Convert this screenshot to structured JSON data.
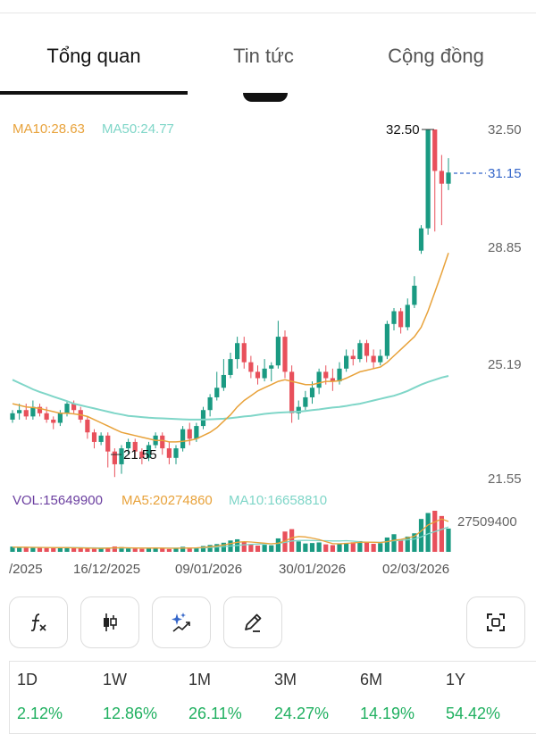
{
  "tabs": [
    {
      "label": "Tổng quan"
    },
    {
      "label": "Tin tức"
    },
    {
      "label": "Cộng đồng"
    }
  ],
  "indicators": {
    "ma10": "MA10:28.63",
    "ma50": "MA50:24.77",
    "vol": "VOL:15649900",
    "vol_ma5": "MA5:20274860",
    "vol_ma10": "MA10:16658810"
  },
  "colors": {
    "up": "#1a9a82",
    "down": "#e8505b",
    "ma10": "#e8a23a",
    "ma50": "#7fd6c8",
    "vol_label": "#6b3fa0",
    "current": "#3566c9",
    "gain": "#20b060"
  },
  "chart_data": {
    "type": "candlestick",
    "price_axis_labels": [
      "32.50",
      "28.85",
      "25.19",
      "21.55"
    ],
    "ylim": [
      21.55,
      32.5
    ],
    "high_marker": "32.50",
    "low_marker": "21.55",
    "current_price": "31.15",
    "volume_axis_label": "27509400",
    "x_labels": [
      "/2025",
      "16/12/2025",
      "09/01/2026",
      "30/01/2026",
      "02/03/2026"
    ],
    "candles": [
      [
        23.4,
        23.6,
        23.3,
        23.7
      ],
      [
        23.6,
        23.7,
        23.4,
        23.9
      ],
      [
        23.7,
        23.5,
        23.4,
        23.9
      ],
      [
        23.5,
        23.8,
        23.4,
        24.0
      ],
      [
        23.8,
        23.6,
        23.5,
        23.9
      ],
      [
        23.6,
        23.4,
        23.3,
        23.8
      ],
      [
        23.4,
        23.3,
        23.1,
        23.5
      ],
      [
        23.3,
        23.6,
        23.2,
        23.7
      ],
      [
        23.6,
        23.9,
        23.5,
        24.0
      ],
      [
        23.9,
        23.7,
        23.6,
        24.0
      ],
      [
        23.7,
        23.4,
        23.3,
        23.8
      ],
      [
        23.4,
        23.0,
        22.8,
        23.5
      ],
      [
        23.0,
        22.7,
        22.5,
        23.1
      ],
      [
        22.7,
        22.9,
        22.6,
        23.0
      ],
      [
        22.9,
        22.4,
        21.9,
        23.0
      ],
      [
        22.4,
        22.0,
        21.6,
        22.5
      ],
      [
        22.0,
        22.5,
        21.7,
        22.6
      ],
      [
        22.5,
        22.7,
        22.3,
        22.8
      ],
      [
        22.7,
        22.4,
        22.2,
        22.8
      ],
      [
        22.4,
        22.2,
        22.0,
        22.5
      ],
      [
        22.2,
        22.6,
        22.1,
        22.7
      ],
      [
        22.6,
        22.9,
        22.5,
        23.0
      ],
      [
        22.9,
        22.5,
        22.3,
        23.0
      ],
      [
        22.5,
        22.2,
        22.0,
        22.7
      ],
      [
        22.2,
        22.5,
        22.0,
        22.6
      ],
      [
        22.5,
        23.1,
        22.4,
        23.2
      ],
      [
        23.1,
        22.8,
        22.6,
        23.3
      ],
      [
        22.8,
        23.2,
        22.7,
        23.3
      ],
      [
        23.2,
        23.7,
        23.1,
        23.8
      ],
      [
        23.7,
        24.1,
        23.5,
        24.2
      ],
      [
        24.1,
        24.4,
        24.0,
        24.9
      ],
      [
        24.4,
        24.8,
        24.3,
        25.3
      ],
      [
        24.8,
        25.3,
        24.7,
        25.5
      ],
      [
        25.3,
        25.8,
        25.0,
        26.0
      ],
      [
        25.8,
        25.2,
        25.0,
        26.0
      ],
      [
        25.2,
        24.9,
        24.7,
        25.4
      ],
      [
        24.9,
        24.7,
        24.5,
        25.1
      ],
      [
        24.7,
        25.0,
        24.6,
        25.3
      ],
      [
        25.0,
        25.1,
        24.6,
        25.2
      ],
      [
        25.1,
        26.0,
        25.0,
        26.5
      ],
      [
        26.0,
        24.9,
        24.7,
        26.2
      ],
      [
        24.9,
        23.6,
        23.3,
        25.1
      ],
      [
        23.6,
        23.8,
        23.4,
        24.0
      ],
      [
        23.8,
        24.1,
        23.7,
        24.3
      ],
      [
        24.1,
        24.4,
        23.9,
        24.6
      ],
      [
        24.4,
        24.9,
        24.2,
        25.0
      ],
      [
        24.9,
        24.7,
        24.5,
        25.1
      ],
      [
        24.7,
        24.6,
        24.3,
        25.0
      ],
      [
        24.6,
        25.0,
        24.5,
        25.2
      ],
      [
        25.0,
        25.4,
        24.9,
        25.6
      ],
      [
        25.4,
        25.3,
        25.1,
        25.6
      ],
      [
        25.3,
        25.8,
        25.2,
        25.9
      ],
      [
        25.8,
        25.4,
        25.2,
        25.9
      ],
      [
        25.4,
        25.2,
        25.0,
        25.6
      ],
      [
        25.2,
        25.4,
        25.1,
        25.6
      ],
      [
        25.4,
        26.4,
        25.3,
        26.5
      ],
      [
        26.4,
        26.8,
        26.2,
        26.9
      ],
      [
        26.8,
        26.3,
        26.1,
        26.9
      ],
      [
        26.3,
        27.0,
        26.2,
        27.2
      ],
      [
        27.0,
        27.6,
        26.9,
        27.9
      ],
      [
        28.7,
        29.4,
        28.6,
        29.5
      ],
      [
        29.4,
        32.5,
        29.2,
        32.5
      ],
      [
        32.5,
        31.2,
        29.3,
        32.5
      ],
      [
        31.2,
        30.8,
        29.5,
        31.7
      ],
      [
        30.8,
        31.15,
        30.6,
        31.6
      ]
    ],
    "ma10_series": [
      23.9,
      23.85,
      23.8,
      23.78,
      23.75,
      23.7,
      23.65,
      23.6,
      23.6,
      23.58,
      23.55,
      23.5,
      23.4,
      23.3,
      23.2,
      23.1,
      23.0,
      22.95,
      22.9,
      22.85,
      22.8,
      22.75,
      22.75,
      22.7,
      22.7,
      22.72,
      22.75,
      22.8,
      22.9,
      23.0,
      23.15,
      23.35,
      23.55,
      23.8,
      24.0,
      24.15,
      24.3,
      24.4,
      24.5,
      24.6,
      24.65,
      24.6,
      24.55,
      24.5,
      24.5,
      24.55,
      24.6,
      24.6,
      24.62,
      24.7,
      24.8,
      24.9,
      24.95,
      25.0,
      25.05,
      25.2,
      25.4,
      25.6,
      25.8,
      26.0,
      26.3,
      26.8,
      27.4,
      28.0,
      28.63
    ],
    "ma50_series": [
      24.65,
      24.55,
      24.45,
      24.35,
      24.27,
      24.2,
      24.12,
      24.05,
      23.98,
      23.9,
      23.85,
      23.8,
      23.75,
      23.7,
      23.65,
      23.6,
      23.56,
      23.52,
      23.5,
      23.48,
      23.46,
      23.45,
      23.44,
      23.43,
      23.42,
      23.41,
      23.4,
      23.4,
      23.4,
      23.41,
      23.42,
      23.43,
      23.45,
      23.47,
      23.5,
      23.52,
      23.55,
      23.58,
      23.6,
      23.62,
      23.63,
      23.64,
      23.65,
      23.67,
      23.7,
      23.72,
      23.75,
      23.78,
      23.8,
      23.83,
      23.87,
      23.9,
      23.95,
      24.0,
      24.05,
      24.1,
      24.15,
      24.22,
      24.3,
      24.4,
      24.5,
      24.58,
      24.65,
      24.72,
      24.77
    ],
    "volume": [
      3.5,
      3.0,
      3.2,
      2.8,
      3.1,
      2.6,
      2.4,
      2.9,
      3.3,
      2.7,
      2.5,
      2.2,
      2.0,
      2.3,
      2.9,
      3.6,
      3.2,
      2.4,
      2.1,
      2.0,
      2.6,
      3.0,
      2.2,
      1.9,
      2.1,
      3.4,
      2.6,
      2.8,
      3.9,
      4.6,
      5.2,
      6.1,
      7.6,
      8.4,
      6.8,
      5.0,
      4.2,
      4.7,
      4.4,
      9.0,
      13.6,
      15.2,
      7.0,
      5.6,
      5.9,
      6.3,
      5.0,
      4.5,
      5.2,
      6.0,
      6.4,
      7.2,
      6.6,
      5.4,
      5.8,
      9.6,
      11.8,
      8.2,
      10.2,
      12.4,
      22.0,
      26.0,
      27.5,
      24.0,
      15.6
    ],
    "vol_ma5_series": [
      3.2,
      3.1,
      3.1,
      3.0,
      2.9,
      2.9,
      2.8,
      2.8,
      2.8,
      2.7,
      2.6,
      2.5,
      2.4,
      2.3,
      2.5,
      2.7,
      2.8,
      2.7,
      2.6,
      2.5,
      2.5,
      2.6,
      2.5,
      2.4,
      2.4,
      2.5,
      2.6,
      2.7,
      3.0,
      3.4,
      3.9,
      4.6,
      5.5,
      6.4,
      6.8,
      6.6,
      6.2,
      5.8,
      5.4,
      5.8,
      7.2,
      9.4,
      10.3,
      10.0,
      9.2,
      8.2,
      6.8,
      5.5,
      5.4,
      5.7,
      6.0,
      6.4,
      6.5,
      6.4,
      6.2,
      6.8,
      7.8,
      8.3,
      9.3,
      10.4,
      14.0,
      18.0,
      20.0,
      22.0,
      20.3
    ],
    "vol_ma10_series": [
      3.0,
      3.0,
      3.0,
      3.0,
      3.0,
      2.9,
      2.9,
      2.9,
      2.9,
      2.9,
      2.8,
      2.7,
      2.7,
      2.6,
      2.6,
      2.6,
      2.6,
      2.6,
      2.6,
      2.6,
      2.5,
      2.5,
      2.5,
      2.5,
      2.5,
      2.5,
      2.5,
      2.6,
      2.7,
      2.9,
      3.2,
      3.5,
      3.9,
      4.3,
      4.7,
      5.0,
      5.2,
      5.3,
      5.4,
      5.6,
      6.3,
      7.3,
      7.6,
      7.7,
      7.6,
      7.5,
      7.5,
      7.3,
      7.3,
      7.5,
      7.2,
      6.7,
      6.5,
      6.4,
      6.4,
      6.9,
      7.4,
      7.7,
      8.1,
      8.6,
      10.0,
      12.0,
      13.5,
      15.0,
      16.66
    ]
  },
  "toolbar": [
    {
      "icon": "function-icon"
    },
    {
      "icon": "candlestick-icon"
    },
    {
      "icon": "sparkle-drawing-icon"
    },
    {
      "icon": "pencil-icon"
    },
    {
      "icon": "fullscreen-icon"
    }
  ],
  "performance": [
    {
      "period": "1D",
      "change": "2.12%"
    },
    {
      "period": "1W",
      "change": "12.86%"
    },
    {
      "period": "1M",
      "change": "26.11%"
    },
    {
      "period": "3M",
      "change": "24.27%"
    },
    {
      "period": "6M",
      "change": "14.19%"
    },
    {
      "period": "1Y",
      "change": "54.42%"
    }
  ]
}
